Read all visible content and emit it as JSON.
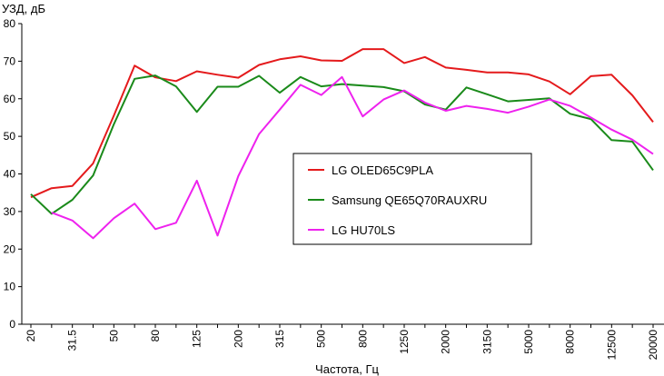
{
  "chart_data": {
    "type": "line",
    "xlabel": "Частота, Гц",
    "ylabel": "УЗД, дБ",
    "ylim": [
      0,
      80
    ],
    "yticks": [
      0,
      10,
      20,
      30,
      40,
      50,
      60,
      70,
      80
    ],
    "grid": false,
    "legend_position": "center-right",
    "x_tick_labels": [
      "20",
      "31.5",
      "50",
      "80",
      "125",
      "200",
      "315",
      "500",
      "800",
      "1250",
      "2000",
      "3150",
      "5000",
      "8000",
      "12500",
      "20000"
    ],
    "x_categories": [
      "20",
      "25",
      "31.5",
      "40",
      "50",
      "63",
      "80",
      "100",
      "125",
      "160",
      "200",
      "250",
      "315",
      "400",
      "500",
      "630",
      "800",
      "1000",
      "1250",
      "1600",
      "2000",
      "2500",
      "3150",
      "4000",
      "5000",
      "6300",
      "8000",
      "10000",
      "12500",
      "16000",
      "20000"
    ],
    "series": [
      {
        "name": "LG OLED65C9PLA",
        "color": "#e41a1c",
        "values": [
          33.8,
          36.2,
          36.8,
          42.8,
          55.5,
          68.8,
          65.7,
          64.7,
          67.3,
          66.4,
          65.6,
          69.0,
          70.5,
          71.3,
          70.2,
          70.1,
          73.2,
          73.2,
          69.5,
          71.1,
          68.3,
          67.7,
          67.0,
          67.0,
          66.5,
          64.6,
          61.2,
          66.0,
          66.4,
          60.9,
          53.8
        ]
      },
      {
        "name": "Samsung QE65Q70RAUXRU",
        "color": "#1a8a1a",
        "values": [
          34.6,
          29.4,
          33.1,
          39.6,
          53.2,
          65.3,
          66.2,
          63.3,
          56.5,
          63.2,
          63.2,
          66.1,
          61.6,
          65.8,
          63.3,
          63.9,
          63.5,
          63.1,
          62.0,
          58.5,
          57.1,
          63.0,
          61.2,
          59.3,
          59.7,
          60.1,
          56.0,
          54.6,
          49.0,
          48.6,
          41.0
        ]
      },
      {
        "name": "LG HU70LS",
        "color": "#ee22ee",
        "values": [
          null,
          29.7,
          27.6,
          22.9,
          28.2,
          32.1,
          25.3,
          27.0,
          38.2,
          23.6,
          39.4,
          50.6,
          57.1,
          63.7,
          61.0,
          65.8,
          55.3,
          59.8,
          62.2,
          59.0,
          56.8,
          58.1,
          57.3,
          56.3,
          57.9,
          59.8,
          58.1,
          55.0,
          51.8,
          49.1,
          45.3
        ]
      }
    ]
  }
}
